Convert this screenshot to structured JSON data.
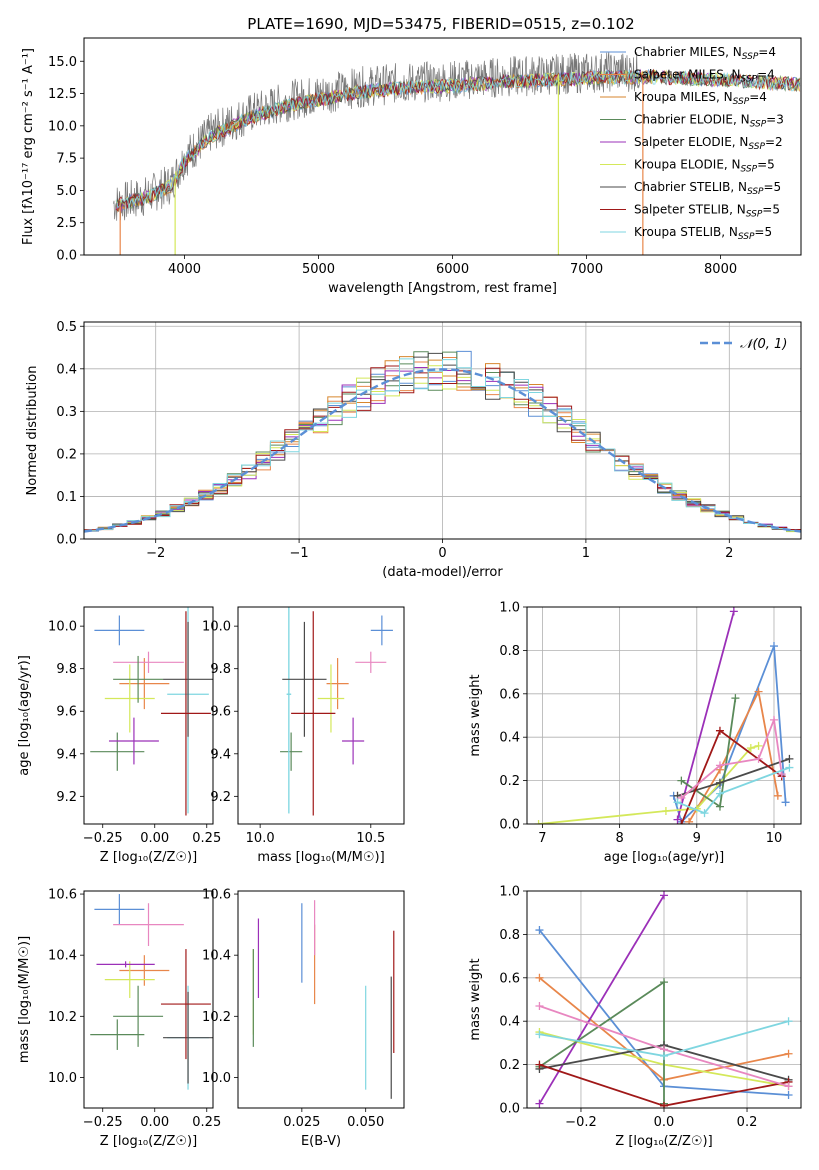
{
  "colors": {
    "chabrier_miles": "#5b8fd6",
    "salpeter_miles": "#e8864a",
    "kroupa_miles": "#d7862e",
    "chabrier_elodie": "#5a8a5a",
    "salpeter_elodie": "#9b30b8",
    "kroupa_elodie": "#d4e85a",
    "chabrier_stelib": "#4a4a4a",
    "salpeter_stelib": "#a01818",
    "kroupa_stelib": "#7fd6e0",
    "normal_curve": "#5b8fd6",
    "pink": "#e887c0"
  },
  "chart_data": [
    {
      "panel": "spectrum",
      "type": "line",
      "title": "PLATE=1690, MJD=53475, FIBERID=0515, z=0.102",
      "xlabel": "wavelength [Angstrom, rest frame]",
      "ylabel": "Flux [fλ10⁻¹⁷ erg cm⁻² s⁻¹ A⁻¹]",
      "xlim": [
        3250,
        8600
      ],
      "ylim": [
        0,
        16.8
      ],
      "xticks": [
        "4000",
        "5000",
        "6000",
        "7000",
        "8000"
      ],
      "yticks": [
        "0.0",
        "2.5",
        "5.0",
        "7.5",
        "10.0",
        "12.5",
        "15.0"
      ],
      "legend_position": "right",
      "legend": [
        {
          "label": "Chabrier MILES, N",
          "sub": "SSP",
          "tail": "=4",
          "color_key": "chabrier_miles"
        },
        {
          "label": "Salpeter MILES, N",
          "sub": "SSP",
          "tail": "=4",
          "color_key": "salpeter_miles"
        },
        {
          "label": "Kroupa MILES, N",
          "sub": "SSP",
          "tail": "=4",
          "color_key": "kroupa_miles"
        },
        {
          "label": "Chabrier ELODIE, N",
          "sub": "SSP",
          "tail": "=3",
          "color_key": "chabrier_elodie"
        },
        {
          "label": "Salpeter ELODIE, N",
          "sub": "SSP",
          "tail": "=2",
          "color_key": "salpeter_elodie"
        },
        {
          "label": "Kroupa ELODIE, N",
          "sub": "SSP",
          "tail": "=5",
          "color_key": "kroupa_elodie"
        },
        {
          "label": "Chabrier STELIB, N",
          "sub": "SSP",
          "tail": "=5",
          "color_key": "chabrier_stelib"
        },
        {
          "label": "Salpeter STELIB, N",
          "sub": "SSP",
          "tail": "=5",
          "color_key": "salpeter_stelib"
        },
        {
          "label": "Kroupa STELIB, N",
          "sub": "SSP",
          "tail": "=5",
          "color_key": "kroupa_stelib"
        }
      ],
      "envelope": {
        "x": [
          3500,
          3700,
          3900,
          4000,
          4200,
          4500,
          4800,
          5000,
          5300,
          5600,
          6000,
          6400,
          6800,
          7200,
          7500,
          8000,
          8300,
          8600
        ],
        "y": [
          4.0,
          4.5,
          5.5,
          7.5,
          9.5,
          11.0,
          12.0,
          12.4,
          13.0,
          13.3,
          13.5,
          13.8,
          14.0,
          14.2,
          14.2,
          14.0,
          13.8,
          13.6
        ]
      },
      "spikes": [
        {
          "x": 3520,
          "y_low": 0
        },
        {
          "x": 3930,
          "y_low": 0
        },
        {
          "x": 6790,
          "y_low": 0
        },
        {
          "x": 7420,
          "y_low": 0
        }
      ],
      "observed_range": [
        3470,
        7400
      ],
      "model_range": [
        7000,
        8600
      ]
    },
    {
      "panel": "residuals",
      "type": "histogram",
      "xlabel": "(data-model)/error",
      "ylabel": "Normed distribution",
      "xlim": [
        -2.5,
        2.5
      ],
      "ylim": [
        0,
        0.51
      ],
      "xticks": [
        "−2",
        "−1",
        "0",
        "1",
        "2"
      ],
      "yticks": [
        "0.0",
        "0.1",
        "0.2",
        "0.3",
        "0.4",
        "0.5"
      ],
      "bin_width": 0.1,
      "grid": true,
      "legend_position": "top-right",
      "legend": [
        {
          "label": "𝒩(0, 1)",
          "color_key": "normal_curve"
        }
      ]
    },
    {
      "panel": "age_vs_Z",
      "type": "errorbar",
      "xlabel": "Z [log₁₀(Z/Z☉)]",
      "ylabel": "age  [log₁₀(age/yr)]",
      "xlim": [
        -0.34,
        0.28
      ],
      "ylim": [
        9.07,
        10.09
      ],
      "xticks": [
        "−0.25",
        "0.00",
        "0.25"
      ],
      "yticks": [
        "9.2",
        "9.4",
        "9.6",
        "9.8",
        "10.0"
      ],
      "points": [
        {
          "x": -0.17,
          "xerr": 0.12,
          "y": 9.98,
          "yerr": 0.07,
          "color_key": "chabrier_miles"
        },
        {
          "x": -0.05,
          "xerr": 0.12,
          "y": 9.73,
          "yerr": 0.12,
          "color_key": "salpeter_miles"
        },
        {
          "x": -0.03,
          "xerr": 0.17,
          "y": 9.83,
          "yerr": 0.05,
          "color_key": "pink"
        },
        {
          "x": -0.12,
          "xerr": 0.12,
          "y": 9.66,
          "yerr": 0.16,
          "color_key": "kroupa_elodie"
        },
        {
          "x": -0.18,
          "xerr": 0.13,
          "y": 9.41,
          "yerr": 0.09,
          "color_key": "chabrier_elodie"
        },
        {
          "x": -0.08,
          "xerr": 0.12,
          "y": 9.75,
          "yerr": 0.11,
          "color_key": "chabrier_elodie"
        },
        {
          "x": -0.1,
          "xerr": 0.12,
          "y": 9.46,
          "yerr": 0.11,
          "color_key": "salpeter_elodie"
        },
        {
          "x": 0.16,
          "xerr": 0.1,
          "y": 9.68,
          "yerr": 0.56,
          "color_key": "kroupa_stelib"
        },
        {
          "x": 0.16,
          "xerr": 0.12,
          "y": 9.75,
          "yerr": 0.27,
          "color_key": "chabrier_stelib"
        },
        {
          "x": 0.15,
          "xerr": 0.12,
          "y": 9.59,
          "yerr": 0.48,
          "color_key": "salpeter_stelib"
        }
      ]
    },
    {
      "panel": "age_vs_mass",
      "type": "errorbar",
      "xlabel": "mass [log₁₀(M/M☉)]",
      "xlim": [
        9.9,
        10.65
      ],
      "ylim": [
        9.07,
        10.09
      ],
      "xticks": [
        "10.0",
        "10.5"
      ],
      "yticks": [
        "9.2",
        "9.4",
        "9.6",
        "9.8",
        "10.0"
      ],
      "points": [
        {
          "x": 10.55,
          "xerr": 0.05,
          "y": 9.98,
          "yerr": 0.07,
          "color_key": "chabrier_miles"
        },
        {
          "x": 10.35,
          "xerr": 0.05,
          "y": 9.73,
          "yerr": 0.12,
          "color_key": "salpeter_miles"
        },
        {
          "x": 10.5,
          "xerr": 0.07,
          "y": 9.83,
          "yerr": 0.05,
          "color_key": "pink"
        },
        {
          "x": 10.32,
          "xerr": 0.06,
          "y": 9.66,
          "yerr": 0.16,
          "color_key": "kroupa_elodie"
        },
        {
          "x": 10.14,
          "xerr": 0.05,
          "y": 9.41,
          "yerr": 0.09,
          "color_key": "chabrier_elodie"
        },
        {
          "x": 10.42,
          "xerr": 0.05,
          "y": 9.46,
          "yerr": 0.11,
          "color_key": "salpeter_elodie"
        },
        {
          "x": 10.13,
          "xerr": 0.01,
          "y": 9.68,
          "yerr": 0.56,
          "color_key": "kroupa_stelib"
        },
        {
          "x": 10.13,
          "xerr": 0.01,
          "y": 9.68,
          "yerr": 0.56,
          "color_key": "kroupa_stelib"
        },
        {
          "x": 10.2,
          "xerr": 0.1,
          "y": 9.75,
          "yerr": 0.27,
          "color_key": "chabrier_stelib"
        },
        {
          "x": 10.24,
          "xerr": 0.1,
          "y": 9.59,
          "yerr": 0.48,
          "color_key": "salpeter_stelib"
        }
      ]
    },
    {
      "panel": "weight_vs_age",
      "type": "line",
      "xlabel": "age  [log₁₀(age/yr)]",
      "ylabel": "mass weight",
      "xlim": [
        6.8,
        10.35
      ],
      "ylim": [
        0,
        1.0
      ],
      "xticks": [
        "7",
        "8",
        "9",
        "10"
      ],
      "yticks": [
        "0.0",
        "0.2",
        "0.4",
        "0.6",
        "0.8",
        "1.0"
      ],
      "grid": true,
      "series": [
        {
          "color_key": "chabrier_miles",
          "x": [
            8.7,
            8.8,
            9.3,
            10.0,
            10.15
          ],
          "y": [
            0.13,
            0.01,
            0.18,
            0.82,
            0.1
          ]
        },
        {
          "color_key": "salpeter_miles",
          "x": [
            8.9,
            9.3,
            9.8,
            10.05
          ],
          "y": [
            0.01,
            0.25,
            0.61,
            0.13
          ]
        },
        {
          "color_key": "salpeter_elodie",
          "x": [
            8.75,
            9.48
          ],
          "y": [
            0.02,
            0.98
          ]
        },
        {
          "color_key": "kroupa_elodie",
          "x": [
            6.95,
            8.6,
            9.0,
            9.3,
            9.7,
            9.8
          ],
          "y": [
            0.0,
            0.06,
            0.07,
            0.19,
            0.35,
            0.36
          ]
        },
        {
          "color_key": "chabrier_elodie",
          "x": [
            8.8,
            9.3,
            9.5
          ],
          "y": [
            0.2,
            0.08,
            0.58
          ]
        },
        {
          "color_key": "chabrier_stelib",
          "x": [
            8.75,
            9.3,
            10.2
          ],
          "y": [
            0.13,
            0.19,
            0.3
          ]
        },
        {
          "color_key": "salpeter_stelib",
          "x": [
            8.8,
            9.3,
            10.1
          ],
          "y": [
            0.0,
            0.43,
            0.22
          ]
        },
        {
          "color_key": "pink",
          "x": [
            8.8,
            9.3,
            9.8,
            10.0,
            10.1
          ],
          "y": [
            0.12,
            0.27,
            0.3,
            0.48,
            0.23
          ]
        },
        {
          "color_key": "kroupa_stelib",
          "x": [
            8.75,
            9.1,
            9.3,
            10.2
          ],
          "y": [
            0.1,
            0.05,
            0.14,
            0.26
          ]
        }
      ]
    },
    {
      "panel": "mass_vs_Z",
      "type": "errorbar",
      "xlabel": "Z [log₁₀(Z/Z☉)]",
      "ylabel": "mass [log₁₀(M/M☉)]",
      "xlim": [
        -0.34,
        0.28
      ],
      "ylim": [
        9.9,
        10.61
      ],
      "xticks": [
        "−0.25",
        "0.00",
        "0.25"
      ],
      "yticks": [
        "10.0",
        "10.2",
        "10.4",
        "10.6"
      ],
      "points": [
        {
          "x": -0.17,
          "xerr": 0.12,
          "y": 10.55,
          "yerr": 0.05,
          "color_key": "chabrier_miles"
        },
        {
          "x": -0.05,
          "xerr": 0.12,
          "y": 10.35,
          "yerr": 0.05,
          "color_key": "salpeter_miles"
        },
        {
          "x": -0.03,
          "xerr": 0.17,
          "y": 10.5,
          "yerr": 0.07,
          "color_key": "pink"
        },
        {
          "x": -0.12,
          "xerr": 0.12,
          "y": 10.32,
          "yerr": 0.06,
          "color_key": "kroupa_elodie"
        },
        {
          "x": -0.18,
          "xerr": 0.13,
          "y": 10.14,
          "yerr": 0.05,
          "color_key": "chabrier_elodie"
        },
        {
          "x": -0.08,
          "xerr": 0.12,
          "y": 10.2,
          "yerr": 0.1,
          "color_key": "chabrier_elodie"
        },
        {
          "x": -0.14,
          "xerr": 0.14,
          "y": 10.37,
          "yerr": 0.01,
          "color_key": "salpeter_elodie"
        },
        {
          "x": 0.16,
          "xerr": 0.1,
          "y": 10.13,
          "yerr": 0.17,
          "color_key": "kroupa_stelib"
        },
        {
          "x": 0.16,
          "xerr": 0.12,
          "y": 10.13,
          "yerr": 0.15,
          "color_key": "chabrier_stelib"
        },
        {
          "x": 0.15,
          "xerr": 0.12,
          "y": 10.24,
          "yerr": 0.18,
          "color_key": "salpeter_stelib"
        }
      ]
    },
    {
      "panel": "mass_vs_EBV",
      "type": "errorbar",
      "xlabel": "E(B-V)",
      "xlim": [
        0.0,
        0.065
      ],
      "ylim": [
        9.9,
        10.61
      ],
      "xticks": [
        "0.025",
        "0.050"
      ],
      "yticks": [
        "10.0",
        "10.2",
        "10.4",
        "10.6"
      ],
      "points": [
        {
          "x": 0.008,
          "y": 10.39,
          "yerr": 0.13,
          "color_key": "salpeter_elodie"
        },
        {
          "x": 0.006,
          "y": 10.28,
          "yerr": 0.14,
          "color_key": "kroupa_elodie"
        },
        {
          "x": 0.006,
          "y": 10.26,
          "yerr": 0.16,
          "color_key": "chabrier_elodie"
        },
        {
          "x": 0.025,
          "y": 10.44,
          "yerr": 0.13,
          "color_key": "chabrier_miles"
        },
        {
          "x": 0.03,
          "y": 10.37,
          "yerr": 0.13,
          "color_key": "salpeter_miles"
        },
        {
          "x": 0.03,
          "y": 10.49,
          "yerr": 0.09,
          "color_key": "pink"
        },
        {
          "x": 0.05,
          "y": 10.13,
          "yerr": 0.17,
          "color_key": "kroupa_stelib"
        },
        {
          "x": 0.06,
          "y": 10.13,
          "yerr": 0.2,
          "color_key": "chabrier_stelib"
        },
        {
          "x": 0.061,
          "y": 10.28,
          "yerr": 0.2,
          "color_key": "salpeter_stelib"
        }
      ]
    },
    {
      "panel": "weight_vs_Z",
      "type": "line",
      "xlabel": "Z [log₁₀(Z/Z☉)]",
      "ylabel": "mass weight",
      "xlim": [
        -0.33,
        0.33
      ],
      "ylim": [
        0,
        1.0
      ],
      "xticks": [
        "−0.2",
        "0.0",
        "0.2"
      ],
      "yticks": [
        "0.0",
        "0.2",
        "0.4",
        "0.6",
        "0.8",
        "1.0"
      ],
      "grid": true,
      "series": [
        {
          "color_key": "chabrier_miles",
          "x": [
            -0.3,
            0.0,
            0.3
          ],
          "y": [
            0.82,
            0.1,
            0.06
          ]
        },
        {
          "color_key": "salpeter_miles",
          "x": [
            -0.3,
            0.0,
            0.3
          ],
          "y": [
            0.6,
            0.13,
            0.25
          ]
        },
        {
          "color_key": "salpeter_elodie",
          "x": [
            -0.3,
            0.0
          ],
          "y": [
            0.02,
            0.98
          ]
        },
        {
          "color_key": "kroupa_elodie",
          "x": [
            -0.3,
            0.0,
            0.3
          ],
          "y": [
            0.35,
            0.2,
            0.1
          ]
        },
        {
          "color_key": "chabrier_elodie",
          "x": [
            -0.3,
            0.0,
            0.0
          ],
          "y": [
            0.19,
            0.58,
            0.02
          ]
        },
        {
          "color_key": "chabrier_stelib",
          "x": [
            -0.3,
            0.0,
            0.3
          ],
          "y": [
            0.18,
            0.29,
            0.13
          ]
        },
        {
          "color_key": "salpeter_stelib",
          "x": [
            -0.3,
            0.0,
            0.3
          ],
          "y": [
            0.2,
            0.01,
            0.12
          ]
        },
        {
          "color_key": "pink",
          "x": [
            -0.3,
            0.0,
            0.3
          ],
          "y": [
            0.47,
            0.27,
            0.1
          ]
        },
        {
          "color_key": "kroupa_stelib",
          "x": [
            -0.3,
            0.0,
            0.3
          ],
          "y": [
            0.34,
            0.24,
            0.4
          ]
        }
      ]
    }
  ]
}
